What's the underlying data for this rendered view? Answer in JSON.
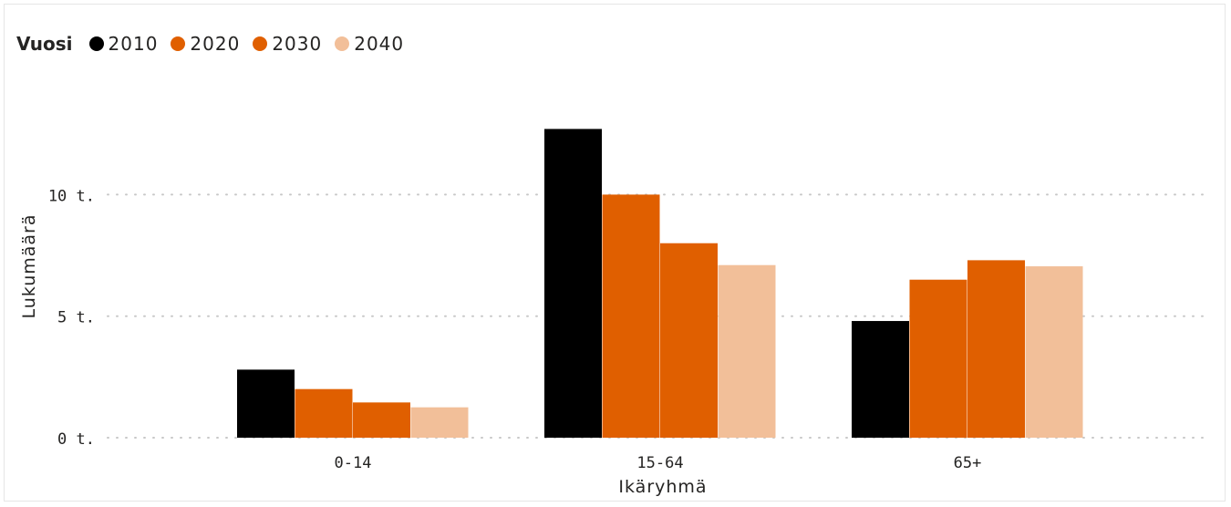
{
  "chart_data": {
    "type": "bar",
    "legend": {
      "title": "Vuosi",
      "placement": "top-left"
    },
    "categories": [
      "0-14",
      "15-64",
      "65+"
    ],
    "series": [
      {
        "name": "2010",
        "color": "#000000",
        "values": [
          2800,
          12700,
          4800
        ]
      },
      {
        "name": "2020",
        "color": "#e05f00",
        "values": [
          2000,
          10000,
          6500
        ]
      },
      {
        "name": "2030",
        "color": "#e05f00",
        "values": [
          1450,
          8000,
          7300
        ]
      },
      {
        "name": "2040",
        "color": "#f2bf99",
        "values": [
          1250,
          7100,
          7050
        ]
      }
    ],
    "xlabel": "Ikäryhmä",
    "ylabel": "Lukumäärä",
    "yticks": [
      {
        "value": 0,
        "label": "0 t."
      },
      {
        "value": 5000,
        "label": "5 t."
      },
      {
        "value": 10000,
        "label": "10 t."
      }
    ],
    "ylim": [
      0,
      15000
    ],
    "grid": true
  }
}
